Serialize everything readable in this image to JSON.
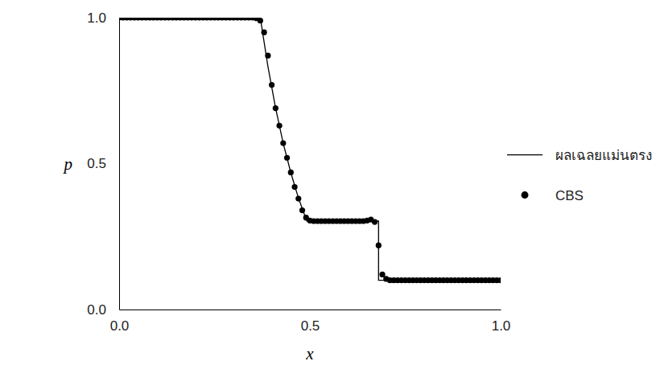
{
  "chart_data": {
    "type": "line",
    "x_label": "x",
    "y_label": "p",
    "xlim": [
      0,
      1
    ],
    "ylim": [
      0,
      1
    ],
    "xticks": [
      {
        "value": 0,
        "label": "0.0"
      },
      {
        "value": 0.5,
        "label": "0.5"
      },
      {
        "value": 1,
        "label": "1.0"
      }
    ],
    "yticks": [
      {
        "value": 0,
        "label": "0.0"
      },
      {
        "value": 0.5,
        "label": "0.5"
      },
      {
        "value": 1,
        "label": "1.0"
      }
    ],
    "grid": false,
    "legend": "right",
    "series": [
      {
        "name": "ผลเฉลยแม่นตรง",
        "type": "line",
        "color": "#000000",
        "line_style": "solid",
        "x": [
          0,
          0.37,
          0.39,
          0.41,
          0.43,
          0.45,
          0.47,
          0.492,
          0.68,
          0.68,
          1
        ],
        "values": [
          1,
          1,
          0.833,
          0.691,
          0.57,
          0.469,
          0.382,
          0.303,
          0.303,
          0.1,
          0.1
        ]
      },
      {
        "name": "CBS",
        "type": "scatter",
        "color": "#000000",
        "marker": "circle",
        "x": [
          0,
          0.01,
          0.02,
          0.03,
          0.04,
          0.05,
          0.06,
          0.07,
          0.08,
          0.09,
          0.1,
          0.11,
          0.12,
          0.13,
          0.14,
          0.15,
          0.16,
          0.17,
          0.18,
          0.19,
          0.2,
          0.21,
          0.22,
          0.23,
          0.24,
          0.25,
          0.26,
          0.27,
          0.28,
          0.29,
          0.3,
          0.31,
          0.32,
          0.33,
          0.34,
          0.35,
          0.36,
          0.37,
          0.38,
          0.39,
          0.4,
          0.41,
          0.42,
          0.43,
          0.44,
          0.45,
          0.46,
          0.47,
          0.48,
          0.49,
          0.5,
          0.51,
          0.52,
          0.53,
          0.54,
          0.55,
          0.56,
          0.57,
          0.58,
          0.59,
          0.6,
          0.61,
          0.62,
          0.63,
          0.64,
          0.65,
          0.66,
          0.67,
          0.68,
          0.69,
          0.7,
          0.71,
          0.72,
          0.73,
          0.74,
          0.75,
          0.76,
          0.77,
          0.78,
          0.79,
          0.8,
          0.81,
          0.82,
          0.83,
          0.84,
          0.85,
          0.86,
          0.87,
          0.88,
          0.89,
          0.9,
          0.91,
          0.92,
          0.93,
          0.94,
          0.95,
          0.96,
          0.97,
          0.98,
          0.99,
          1
        ],
        "values": [
          1,
          1,
          1,
          1,
          1,
          1,
          1,
          1,
          1,
          1,
          1,
          1,
          1,
          1,
          1,
          1,
          1,
          1,
          1,
          1,
          1,
          1,
          1,
          1,
          1,
          1,
          1,
          1,
          1,
          1,
          1,
          1,
          1,
          1,
          1,
          1,
          0.998,
          0.99,
          0.95,
          0.87,
          0.77,
          0.69,
          0.63,
          0.57,
          0.52,
          0.47,
          0.42,
          0.38,
          0.34,
          0.315,
          0.305,
          0.303,
          0.303,
          0.303,
          0.303,
          0.303,
          0.303,
          0.303,
          0.303,
          0.303,
          0.303,
          0.303,
          0.303,
          0.303,
          0.303,
          0.305,
          0.308,
          0.3,
          0.22,
          0.12,
          0.105,
          0.1,
          0.1,
          0.1,
          0.1,
          0.1,
          0.1,
          0.1,
          0.1,
          0.1,
          0.1,
          0.1,
          0.1,
          0.1,
          0.1,
          0.1,
          0.1,
          0.1,
          0.1,
          0.1,
          0.1,
          0.1,
          0.1,
          0.1,
          0.1,
          0.1,
          0.1,
          0.1,
          0.1,
          0.1,
          0.1
        ]
      }
    ]
  }
}
